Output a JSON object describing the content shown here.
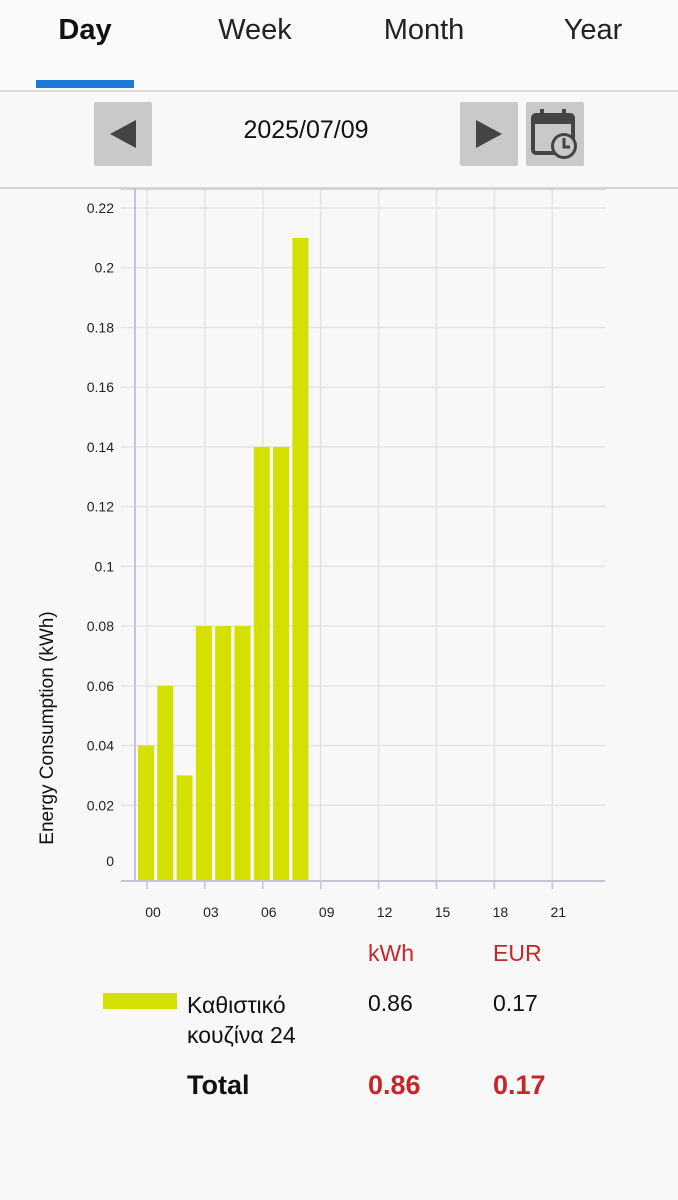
{
  "tabs": [
    {
      "label": "Day",
      "active": true
    },
    {
      "label": "Week",
      "active": false
    },
    {
      "label": "Month",
      "active": false
    },
    {
      "label": "Year",
      "active": false
    }
  ],
  "datebar": {
    "date": "2025/07/09",
    "prev_icon": "triangle-left-icon",
    "next_icon": "triangle-right-icon",
    "calendar_icon": "calendar-clock-icon"
  },
  "chart_data": {
    "type": "bar",
    "ylabel": "Energy Consumption (kWh)",
    "xlabel": "",
    "ylim": [
      0,
      0.22
    ],
    "yticks": [
      "0",
      "0.02",
      "0.04",
      "0.06",
      "0.08",
      "0.1",
      "0.12",
      "0.14",
      "0.16",
      "0.18",
      "0.2",
      "0.22"
    ],
    "xticks": [
      "00",
      "03",
      "06",
      "09",
      "12",
      "15",
      "18",
      "21"
    ],
    "hours": [
      0,
      1,
      2,
      3,
      4,
      5,
      6,
      7,
      8
    ],
    "values": [
      0.04,
      0.06,
      0.03,
      0.08,
      0.08,
      0.08,
      0.14,
      0.14,
      0.21
    ],
    "bar_color": "#d3e000",
    "grid": true
  },
  "summary": {
    "unit_kwh": "kWh",
    "unit_eur": "EUR",
    "device_name": "Καθιστικό κουζίνα 24",
    "device_kwh": "0.86",
    "device_eur": "0.17",
    "total_label": "Total",
    "total_kwh": "0.86",
    "total_eur": "0.17",
    "accent_color": "#c8252a"
  }
}
